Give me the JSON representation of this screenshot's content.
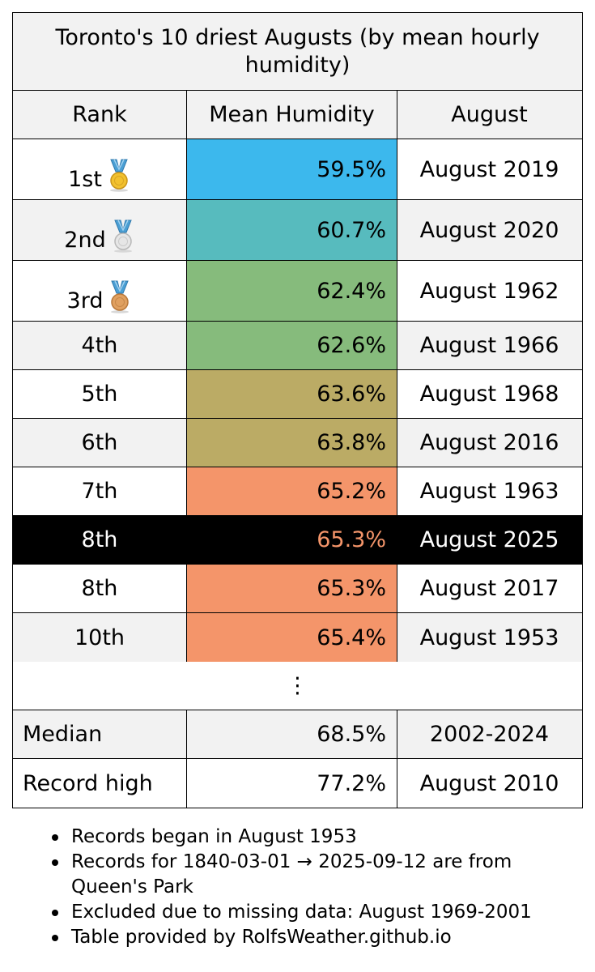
{
  "title": "Toronto's 10 driest Augusts (by mean hourly humidity)",
  "chart_data": {
    "type": "table",
    "columns": [
      "Rank",
      "Mean Humidity",
      "August"
    ],
    "rows": [
      {
        "rank": "1st",
        "medal": "gold-medal-icon",
        "humidity": "59.5%",
        "value": 59.5,
        "august": "August 2019",
        "color": "#3cb8ed"
      },
      {
        "rank": "2nd",
        "medal": "silver-medal-icon",
        "humidity": "60.7%",
        "value": 60.7,
        "august": "August 2020",
        "color": "#57bbbe"
      },
      {
        "rank": "3rd",
        "medal": "bronze-medal-icon",
        "humidity": "62.4%",
        "value": 62.4,
        "august": "August 1962",
        "color": "#86bb7c"
      },
      {
        "rank": "4th",
        "humidity": "62.6%",
        "value": 62.6,
        "august": "August 1966",
        "color": "#86bb7c"
      },
      {
        "rank": "5th",
        "humidity": "63.6%",
        "value": 63.6,
        "august": "August 1968",
        "color": "#bbab65"
      },
      {
        "rank": "6th",
        "humidity": "63.8%",
        "value": 63.8,
        "august": "August 2016",
        "color": "#bbab65"
      },
      {
        "rank": "7th",
        "humidity": "65.2%",
        "value": 65.2,
        "august": "August 1963",
        "color": "#f4956a"
      },
      {
        "rank": "8th",
        "humidity": "65.3%",
        "value": 65.3,
        "august": "August 2025",
        "color": "#000000",
        "highlight": true
      },
      {
        "rank": "8th",
        "humidity": "65.3%",
        "value": 65.3,
        "august": "August 2017",
        "color": "#f4956a"
      },
      {
        "rank": "10th",
        "humidity": "65.4%",
        "value": 65.4,
        "august": "August 1953",
        "color": "#f4956a"
      }
    ],
    "ellipsis": "⋮",
    "summary": [
      {
        "label": "Median",
        "humidity": "68.5%",
        "value": 68.5,
        "august": "2002-2024"
      },
      {
        "label": "Record high",
        "humidity": "77.2%",
        "value": 77.2,
        "august": "August 2010"
      }
    ]
  },
  "notes": [
    "Records began in August 1953",
    "Records for 1840-03-01 → 2025-09-12 are from Queen's Park",
    "Excluded due to missing data: August 1969-2001",
    "Table provided by RolfsWeather.github.io"
  ]
}
